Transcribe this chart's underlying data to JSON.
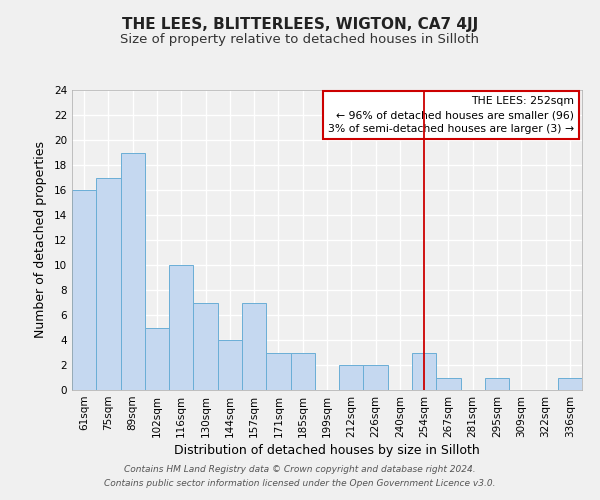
{
  "title": "THE LEES, BLITTERLEES, WIGTON, CA7 4JJ",
  "subtitle": "Size of property relative to detached houses in Silloth",
  "xlabel": "Distribution of detached houses by size in Silloth",
  "ylabel": "Number of detached properties",
  "bar_labels": [
    "61sqm",
    "75sqm",
    "89sqm",
    "102sqm",
    "116sqm",
    "130sqm",
    "144sqm",
    "157sqm",
    "171sqm",
    "185sqm",
    "199sqm",
    "212sqm",
    "226sqm",
    "240sqm",
    "254sqm",
    "267sqm",
    "281sqm",
    "295sqm",
    "309sqm",
    "322sqm",
    "336sqm"
  ],
  "bar_heights": [
    16,
    17,
    19,
    5,
    10,
    7,
    4,
    7,
    3,
    3,
    0,
    2,
    2,
    0,
    3,
    1,
    0,
    1,
    0,
    0,
    1
  ],
  "bar_color": "#c5d8f0",
  "bar_edge_color": "#6aaed6",
  "ylim": [
    0,
    24
  ],
  "yticks": [
    0,
    2,
    4,
    6,
    8,
    10,
    12,
    14,
    16,
    18,
    20,
    22,
    24
  ],
  "vline_x_idx": 14,
  "vline_color": "#cc0000",
  "annotation_title": "THE LEES: 252sqm",
  "annotation_line1": "← 96% of detached houses are smaller (96)",
  "annotation_line2": "3% of semi-detached houses are larger (3) →",
  "annotation_box_color": "#ffffff",
  "annotation_box_edge": "#cc0000",
  "footer1": "Contains HM Land Registry data © Crown copyright and database right 2024.",
  "footer2": "Contains public sector information licensed under the Open Government Licence v3.0.",
  "background_color": "#f0f0f0",
  "plot_bg_color": "#f0f0f0",
  "grid_color": "#ffffff",
  "title_fontsize": 11,
  "subtitle_fontsize": 9.5,
  "axis_label_fontsize": 9,
  "tick_fontsize": 7.5,
  "footer_fontsize": 6.5,
  "annotation_fontsize": 7.8
}
